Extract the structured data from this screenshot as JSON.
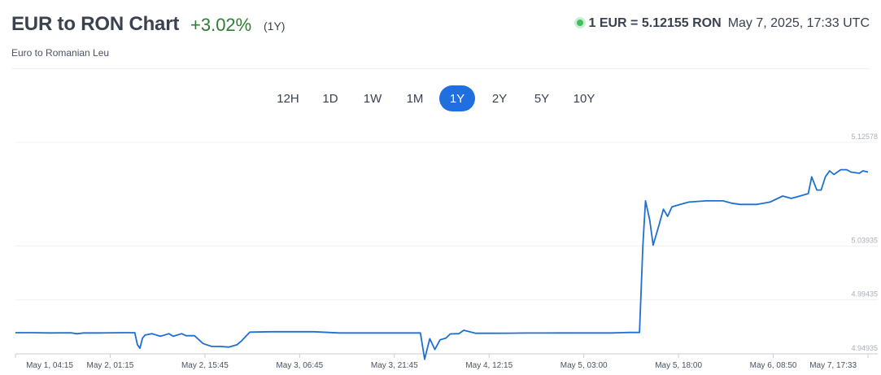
{
  "header": {
    "title": "EUR to RON Chart",
    "change": "+3.02%",
    "period": "(1Y)",
    "subtitle": "Euro to Romanian Leu",
    "rate": "1 EUR = 5.12155 RON",
    "timestamp": "May 7, 2025, 17:33 UTC"
  },
  "ranges": [
    {
      "label": "12H",
      "active": false
    },
    {
      "label": "1D",
      "active": false
    },
    {
      "label": "1W",
      "active": false
    },
    {
      "label": "1M",
      "active": false
    },
    {
      "label": "1Y",
      "active": true
    },
    {
      "label": "2Y",
      "active": false
    },
    {
      "label": "5Y",
      "active": false
    },
    {
      "label": "10Y",
      "active": false
    }
  ],
  "colors": {
    "line": "#1f6fd1",
    "positive": "#2e7d32",
    "accent": "#1f6fe0",
    "live": "#3fbf5b"
  },
  "chart_data": {
    "type": "line",
    "title": "",
    "xlabel": "",
    "ylabel": "",
    "ylim": [
      4.94935,
      5.12578
    ],
    "y_ticks": [
      "5.12578",
      "5.03935",
      "4.99435",
      "4.94935"
    ],
    "x_ticks": [
      "May 1, 04:15",
      "May 2, 01:15",
      "May 2, 15:45",
      "May 3, 06:45",
      "May 3, 21:45",
      "May 4, 12:15",
      "May 5, 03:00",
      "May 5, 18:00",
      "May 6, 08:50",
      "May 7, 17:33"
    ],
    "grid": true,
    "series": [
      {
        "x": [
          0,
          2.0,
          4.0,
          6.5,
          7.2,
          8.0,
          10.0,
          12.5,
          14.0,
          14.3,
          14.6,
          14.9,
          15.2,
          16.0,
          17.0,
          18.0,
          18.5,
          19.5,
          20.0,
          21.0,
          22.0,
          23.0,
          24.0,
          25.0,
          26.0,
          26.5,
          27.5,
          30.0,
          32.0,
          33.0,
          35.0,
          36.0,
          38.0,
          40.0,
          42.0,
          43.0,
          45.0,
          46.0,
          47.5,
          48.0,
          48.6,
          49.2,
          49.8,
          50.5,
          51.0,
          52.0,
          52.6,
          54.0,
          56.0,
          58.0,
          60.0,
          62.0,
          64.0,
          66.0,
          68.0,
          70.0,
          72.0,
          73.2,
          73.6,
          73.9,
          74.4,
          74.8,
          75.5,
          76.0,
          76.5,
          77.0,
          78.0,
          79.0,
          81.0,
          83.0,
          84.0,
          85.0,
          86.0,
          87.0,
          88.5,
          90.0,
          91.0,
          92.0,
          93.0,
          93.4,
          94.0,
          94.5,
          95.0,
          95.5,
          96.0,
          96.8,
          97.5,
          98.0,
          99.0,
          99.4,
          100.0
        ],
        "values": [
          4.967,
          4.967,
          4.9668,
          4.9669,
          4.9661,
          4.9668,
          4.9668,
          4.967,
          4.967,
          4.957,
          4.954,
          4.9625,
          4.965,
          4.9662,
          4.964,
          4.9662,
          4.964,
          4.9662,
          4.9645,
          4.9645,
          4.958,
          4.9555,
          4.9555,
          4.955,
          4.957,
          4.96,
          4.9675,
          4.9678,
          4.9678,
          4.9678,
          4.9678,
          4.9675,
          4.9668,
          4.9668,
          4.9668,
          4.9668,
          4.9668,
          4.9668,
          4.9668,
          4.9448,
          4.962,
          4.953,
          4.961,
          4.9625,
          4.966,
          4.9662,
          4.969,
          4.9665,
          4.9665,
          4.9666,
          4.9667,
          4.9667,
          4.9668,
          4.9668,
          4.9668,
          4.9668,
          4.9672,
          4.9672,
          5.04,
          5.077,
          5.061,
          5.04,
          5.057,
          5.07,
          5.064,
          5.072,
          5.074,
          5.076,
          5.077,
          5.077,
          5.075,
          5.074,
          5.074,
          5.074,
          5.076,
          5.081,
          5.079,
          5.081,
          5.083,
          5.097,
          5.086,
          5.086,
          5.097,
          5.102,
          5.099,
          5.103,
          5.103,
          5.101,
          5.1,
          5.102,
          5.101
        ]
      }
    ]
  }
}
